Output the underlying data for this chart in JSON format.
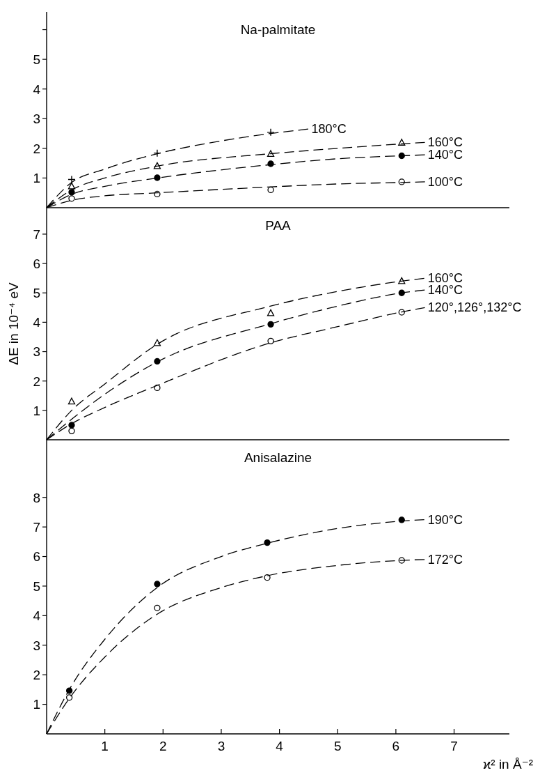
{
  "chart_data": [
    {
      "type": "scatter",
      "title": "Na-palmitate",
      "xlim": [
        0,
        7.95
      ],
      "xticks": [
        1,
        2,
        3,
        4,
        5,
        6,
        7
      ],
      "ylim": [
        0,
        6.6
      ],
      "yticks": [
        1,
        2,
        3,
        4,
        5,
        {
          "value": 6,
          "label": null
        }
      ],
      "tick_labels": "y",
      "grid": false,
      "line_style": "dashed",
      "series": [
        {
          "color": "#000000",
          "marker": "cross",
          "x": [
            0.43,
            1.9,
            3.85
          ],
          "values": [
            0.95,
            1.84,
            2.54
          ]
        },
        {
          "color": "#ffffff",
          "marker": "triangle",
          "x": [
            0.43,
            1.9,
            3.85,
            6.1
          ],
          "values": [
            0.72,
            1.4,
            1.81,
            2.19
          ]
        },
        {
          "color": "#000000",
          "marker": "circle",
          "x": [
            0.43,
            1.9,
            3.85,
            6.1
          ],
          "values": [
            0.52,
            1.01,
            1.48,
            1.75
          ]
        },
        {
          "color": "#ffffff",
          "marker": "circle",
          "x": [
            0.43,
            1.9,
            3.85,
            6.1
          ],
          "values": [
            0.31,
            0.46,
            0.6,
            0.87
          ]
        },
        {
          "type": "line",
          "name": "180°C",
          "color": "#000000",
          "x": [
            0,
            0.43,
            1,
            1.9,
            3,
            3.85,
            4.5
          ],
          "values": [
            0,
            0.85,
            1.3,
            1.82,
            2.25,
            2.5,
            2.65
          ]
        },
        {
          "type": "line",
          "name": "160°C",
          "color": "#000000",
          "x": [
            0,
            0.43,
            1,
            1.9,
            3.85,
            5,
            6.1,
            6.5
          ],
          "values": [
            0,
            0.6,
            1.0,
            1.4,
            1.82,
            2.0,
            2.15,
            2.2
          ]
        },
        {
          "type": "line",
          "name": "140°C",
          "color": "#000000",
          "x": [
            0,
            0.43,
            1,
            1.9,
            3.85,
            5,
            6.1,
            6.5
          ],
          "values": [
            0,
            0.45,
            0.72,
            1.0,
            1.45,
            1.65,
            1.75,
            1.78
          ]
        },
        {
          "type": "line",
          "name": "100°C",
          "color": "#000000",
          "x": [
            0,
            0.43,
            1,
            1.9,
            3.85,
            5,
            6.1,
            6.5
          ],
          "values": [
            0,
            0.25,
            0.4,
            0.5,
            0.7,
            0.8,
            0.85,
            0.87
          ]
        }
      ]
    },
    {
      "type": "scatter",
      "title": "PAA",
      "ylabel": "ΔE in 10⁻⁴ eV",
      "xlim": [
        0,
        7.95
      ],
      "xticks": [
        1,
        2,
        3,
        4,
        5,
        6,
        7
      ],
      "ylim": [
        0,
        7.9
      ],
      "yticks": [
        1,
        2,
        3,
        4,
        5,
        6,
        7
      ],
      "tick_labels": "y",
      "grid": false,
      "line_style": "dashed",
      "series": [
        {
          "color": "#ffffff",
          "marker": "triangle",
          "x": [
            0.43,
            1.9,
            3.85,
            6.1
          ],
          "values": [
            1.3,
            3.29,
            4.31,
            5.4
          ]
        },
        {
          "color": "#000000",
          "marker": "circle",
          "x": [
            0.43,
            1.9,
            3.85,
            6.1
          ],
          "values": [
            0.5,
            2.67,
            3.93,
            5.0
          ]
        },
        {
          "color": "#ffffff",
          "marker": "circle",
          "x": [
            0.43,
            1.9,
            3.85,
            6.1
          ],
          "values": [
            0.3,
            1.77,
            3.36,
            4.34
          ]
        },
        {
          "type": "line",
          "name": "160°C",
          "color": "#000000",
          "x": [
            0,
            0.43,
            1,
            1.9,
            3.85,
            5,
            6.1,
            6.5
          ],
          "values": [
            0,
            1.0,
            1.9,
            3.25,
            4.55,
            5.05,
            5.4,
            5.5
          ]
        },
        {
          "type": "line",
          "name": "140°C",
          "color": "#000000",
          "x": [
            0,
            0.43,
            1,
            1.9,
            3.85,
            5,
            6.1,
            6.5
          ],
          "values": [
            0,
            0.7,
            1.55,
            2.65,
            3.95,
            4.55,
            5.0,
            5.1
          ]
        },
        {
          "type": "line",
          "name": "120°,126°,132°C",
          "color": "#000000",
          "x": [
            0,
            0.43,
            1,
            1.9,
            3.85,
            5,
            6.1,
            6.5
          ],
          "values": [
            0,
            0.55,
            1.1,
            1.85,
            3.3,
            3.85,
            4.35,
            4.5
          ]
        }
      ]
    },
    {
      "type": "scatter",
      "title": "Anisalazine",
      "xlabel": "ϰ² in Å⁻²",
      "xlim": [
        0,
        7.95
      ],
      "xticks": [
        1,
        2,
        3,
        4,
        5,
        6,
        7
      ],
      "ylim": [
        0,
        9.95
      ],
      "yticks": [
        1,
        2,
        3,
        4,
        5,
        6,
        7,
        8
      ],
      "grid": false,
      "line_style": "dashed",
      "series": [
        {
          "color": "#000000",
          "marker": "circle",
          "x": [
            0.39,
            1.9,
            3.79,
            6.1
          ],
          "values": [
            1.46,
            5.07,
            6.47,
            7.24
          ]
        },
        {
          "color": "#ffffff",
          "marker": "circle",
          "x": [
            0.39,
            1.9,
            3.79,
            6.1
          ],
          "values": [
            1.23,
            4.26,
            5.29,
            5.87
          ]
        },
        {
          "type": "line",
          "name": "190°C",
          "color": "#000000",
          "x": [
            0,
            0.39,
            1,
            1.9,
            3,
            3.79,
            5,
            6.1,
            6.5
          ],
          "values": [
            0,
            1.5,
            3.2,
            4.95,
            6.0,
            6.45,
            6.95,
            7.2,
            7.25
          ]
        },
        {
          "type": "line",
          "name": "172°C",
          "color": "#000000",
          "x": [
            0,
            0.39,
            1,
            1.9,
            3,
            3.79,
            5,
            6.1,
            6.5
          ],
          "values": [
            0,
            1.2,
            2.6,
            4.05,
            4.95,
            5.35,
            5.7,
            5.87,
            5.9
          ]
        }
      ]
    }
  ]
}
